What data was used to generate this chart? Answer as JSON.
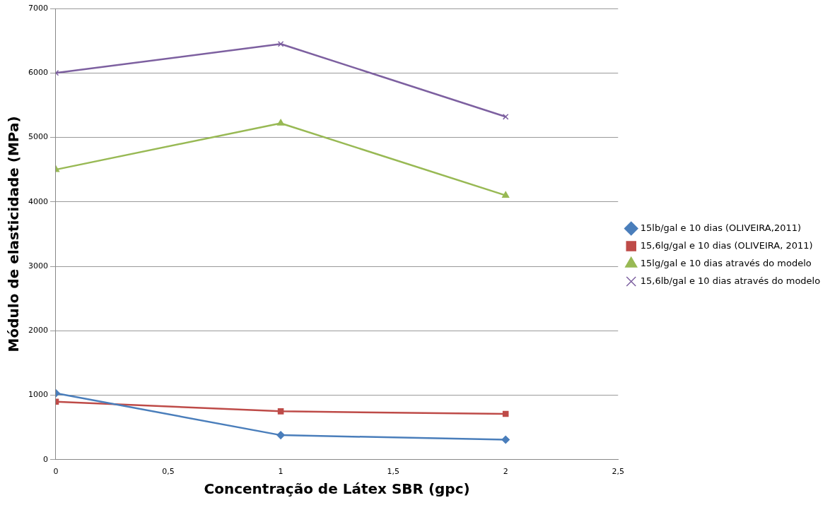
{
  "chart_data": {
    "type": "line",
    "xlabel": "Concentração de Látex SBR (gpc)",
    "ylabel": "Módulo de elasticidade (MPa)",
    "x": [
      0,
      1,
      2
    ],
    "series": [
      {
        "name": "15lb/gal e 10 dias (OLIVEIRA,2011)",
        "color": "#4a7ebb",
        "marker": "diamond",
        "values": [
          1030,
          380,
          310
        ]
      },
      {
        "name": "15,6lg/gal e 10 dias (OLIVEIRA, 2011)",
        "color": "#be4b48",
        "marker": "square",
        "values": [
          900,
          750,
          710
        ]
      },
      {
        "name": "15lg/gal e 10 dias através do modelo",
        "color": "#98b954",
        "marker": "triangle",
        "values": [
          4500,
          5220,
          4100
        ]
      },
      {
        "name": "15,6lb/gal e 10 dias através do modelo",
        "color": "#7d60a0",
        "marker": "cross",
        "values": [
          6000,
          6450,
          5320
        ]
      }
    ],
    "xlim": [
      0,
      2.5
    ],
    "xticks": [
      0,
      {
        "value": 0.5,
        "label": "0,5"
      },
      1,
      {
        "value": 1.5,
        "label": "1,5"
      },
      2,
      {
        "value": 2.5,
        "label": "2,5"
      }
    ],
    "ylim": [
      0,
      7000
    ],
    "yticks": [
      0,
      1000,
      2000,
      3000,
      4000,
      5000,
      6000,
      7000
    ],
    "grid": "y",
    "legend": "right",
    "line_style": "solid"
  }
}
